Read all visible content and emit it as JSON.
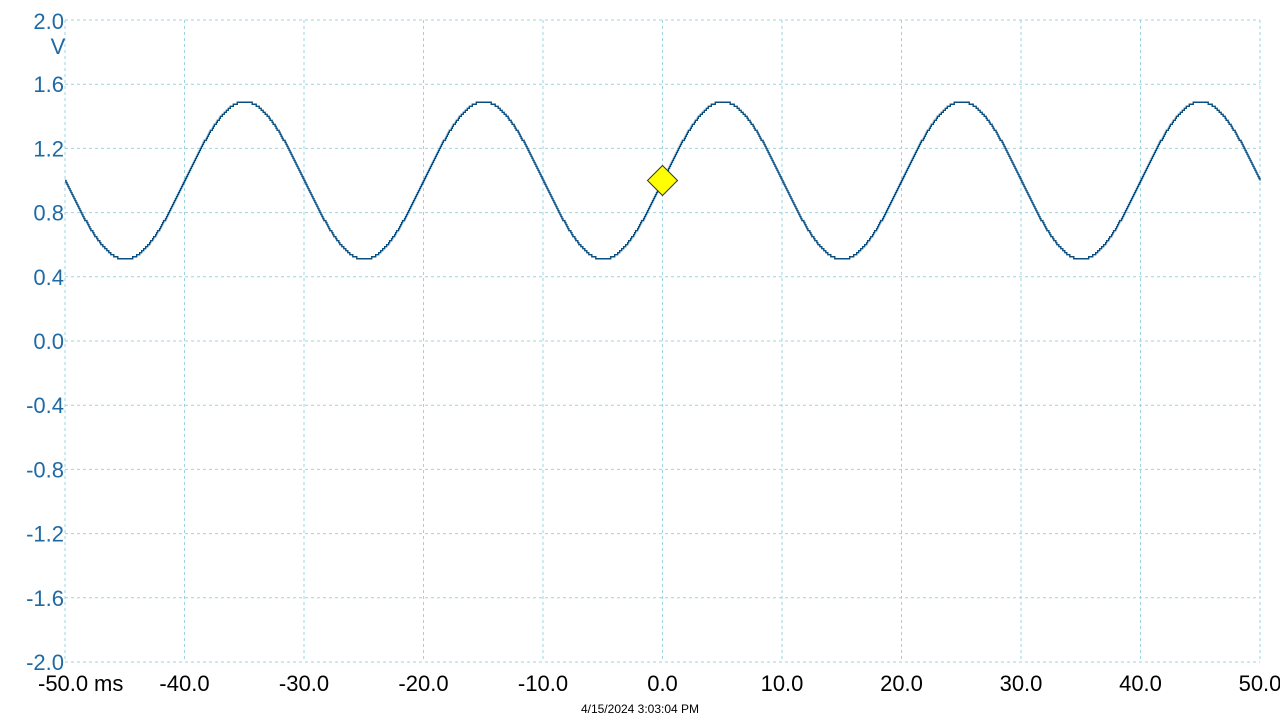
{
  "chart_data": {
    "type": "line",
    "title": "",
    "y_unit": "V",
    "x_unit": "ms",
    "xlim": [
      -50,
      50
    ],
    "ylim": [
      -2,
      2
    ],
    "x_ticks": [
      -50,
      -40,
      -30,
      -20,
      -10,
      0,
      10,
      20,
      30,
      40,
      50
    ],
    "x_tick_labels": [
      "-50.0",
      "-40.0",
      "-30.0",
      "-20.0",
      "-10.0",
      "0.0",
      "10.0",
      "20.0",
      "30.0",
      "40.0",
      "50.0"
    ],
    "y_ticks": [
      2.0,
      1.6,
      1.2,
      0.8,
      0.4,
      0.0,
      -0.4,
      -0.8,
      -1.2,
      -1.6,
      -2.0
    ],
    "y_tick_labels": [
      "2.0",
      "1.6",
      "1.2",
      "0.8",
      "0.4",
      "0.0",
      "-0.4",
      "-0.8",
      "-1.2",
      "-1.6",
      "-2.0"
    ],
    "grid": true,
    "series": [
      {
        "color": "#0b4f80",
        "waveform": "sine",
        "offset": 1.0,
        "amplitude": 0.49,
        "period_ms": 20,
        "x": [
          -50,
          -47.5,
          -45,
          -42.5,
          -40,
          -37.5,
          -35,
          -32.5,
          -30,
          -27.5,
          -25,
          -22.5,
          -20,
          -17.5,
          -15,
          -12.5,
          -10,
          -7.5,
          -5,
          -2.5,
          0,
          2.5,
          5,
          7.5,
          10,
          12.5,
          15,
          17.5,
          20,
          22.5,
          25,
          27.5,
          30,
          32.5,
          35,
          37.5,
          40,
          42.5,
          45,
          47.5,
          50
        ],
        "y": [
          1.0,
          0.65,
          0.51,
          0.65,
          1.0,
          1.35,
          1.49,
          1.35,
          1.0,
          0.65,
          0.51,
          0.65,
          1.0,
          1.35,
          1.49,
          1.35,
          1.0,
          0.65,
          0.51,
          0.65,
          1.0,
          1.35,
          1.49,
          1.35,
          1.0,
          0.65,
          0.51,
          0.65,
          1.0,
          1.35,
          1.49,
          1.35,
          1.0,
          0.65,
          0.51,
          0.65,
          1.0,
          1.35,
          1.49,
          1.35,
          1.0
        ]
      }
    ],
    "trigger_marker": {
      "x": 0.0,
      "y": 1.0,
      "color": "#ffff00"
    }
  },
  "timestamp": "4/15/2024 3:03:04 PM"
}
